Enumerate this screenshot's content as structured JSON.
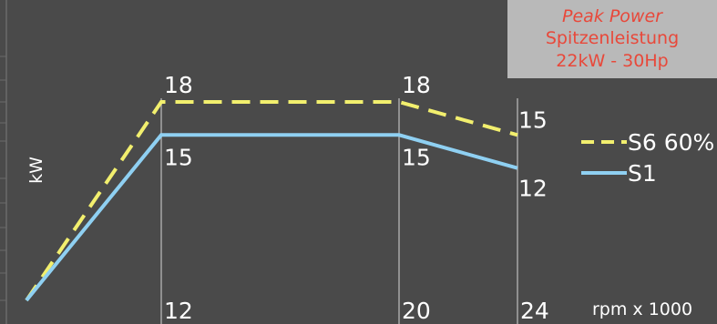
{
  "chart_data": {
    "type": "line",
    "ylabel": "kW",
    "xlabel": "rpm x 1000",
    "x_ticks": [
      "12",
      "20",
      "24"
    ],
    "x_range": [
      3,
      24
    ],
    "y_range": [
      0,
      18
    ],
    "series": [
      {
        "name": "S6 60%",
        "color": "#f2ef6e",
        "dash": true,
        "points": [
          [
            3,
            0
          ],
          [
            12,
            18
          ],
          [
            20,
            18
          ],
          [
            24,
            15
          ]
        ],
        "labels": [
          {
            "x": 12,
            "y": 18,
            "text": "18"
          },
          {
            "x": 20,
            "y": 18,
            "text": "18"
          },
          {
            "x": 24,
            "y": 15,
            "text": "15"
          }
        ]
      },
      {
        "name": "S1",
        "color": "#8fd0f2",
        "dash": false,
        "points": [
          [
            3,
            0
          ],
          [
            12,
            15
          ],
          [
            20,
            15
          ],
          [
            24,
            12
          ]
        ],
        "labels": [
          {
            "x": 12,
            "y": 15,
            "text": "15"
          },
          {
            "x": 20,
            "y": 15,
            "text": "15"
          },
          {
            "x": 24,
            "y": 12,
            "text": "12"
          }
        ]
      }
    ],
    "annotation": {
      "line1": "Peak Power",
      "line2": "Spitzenleistung",
      "line3": "22kW - 30Hp"
    }
  }
}
